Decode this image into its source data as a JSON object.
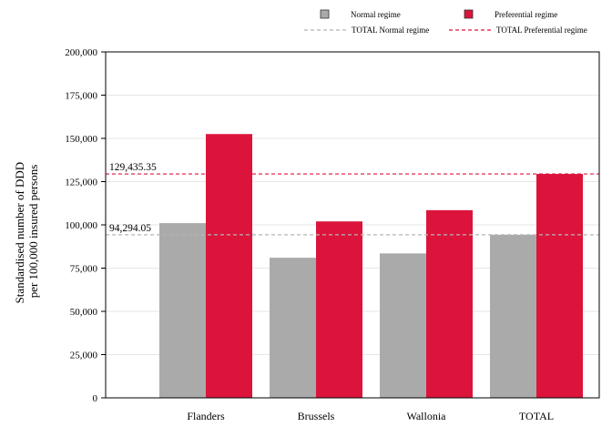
{
  "chart_data": {
    "type": "bar",
    "ylabel_lines": [
      "Standardised number of DDD",
      "per 100,000 insured persons"
    ],
    "categories": [
      "Flanders",
      "Brussels",
      "Wallonia",
      "TOTAL"
    ],
    "series": [
      {
        "name": "Normal regime",
        "color": "#aaaaaa",
        "values": [
          101000,
          81000,
          83500,
          94294.05
        ]
      },
      {
        "name": "Preferential regime",
        "color": "#dc143c",
        "values": [
          152500,
          102000,
          108500,
          129435.35
        ]
      }
    ],
    "reference_lines": [
      {
        "name": "TOTAL Normal regime",
        "value": 94294.05,
        "label": "94,294.05",
        "color": "#b5b5b5"
      },
      {
        "name": "TOTAL Preferential regime",
        "value": 129435.35,
        "label": "129,435.35",
        "color": "#dc143c"
      }
    ],
    "ylim": [
      0,
      200000
    ],
    "yticks": [
      0,
      25000,
      50000,
      75000,
      100000,
      125000,
      150000,
      175000,
      200000
    ],
    "ytick_labels": [
      "0",
      "25,000",
      "50,000",
      "75,000",
      "100,000",
      "125,000",
      "150,000",
      "175,000",
      "200,000"
    ],
    "grid": true,
    "legend_position": "top-right"
  }
}
